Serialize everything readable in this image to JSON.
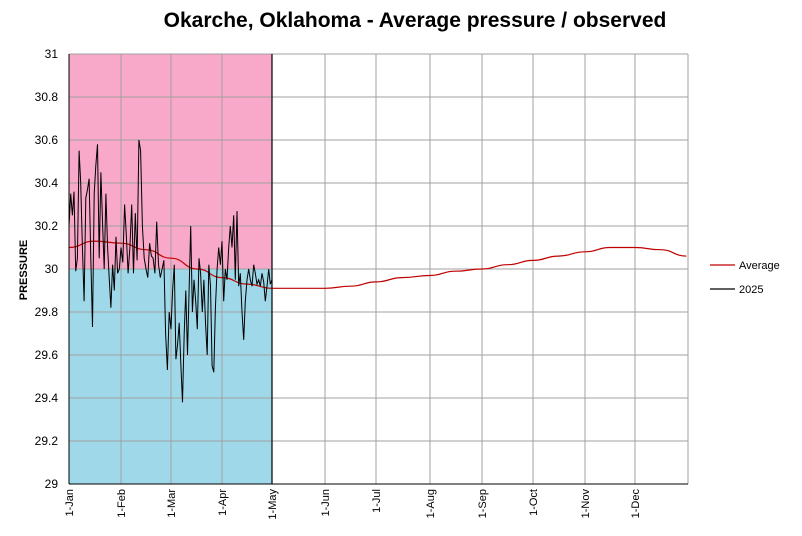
{
  "chart_data": {
    "type": "line",
    "title": "Okarche, Oklahoma - Average pressure / observed",
    "xlabel": "",
    "ylabel": "PRESSURE",
    "ylim": [
      29,
      31
    ],
    "yticks": [
      "31",
      "30.8",
      "30.6",
      "30.4",
      "30.2",
      "30",
      "29.8",
      "29.6",
      "29.4",
      "29.2",
      "29"
    ],
    "xticks": [
      "1-Jan",
      "1-Feb",
      "1-Mar",
      "1-Apr",
      "1-May",
      "1-Jun",
      "1-Jul",
      "1-Aug",
      "1-Sep",
      "1-Oct",
      "1-Nov",
      "1-Dec"
    ],
    "grid": true,
    "legend_position": "right",
    "colors": {
      "average": "#c00000",
      "observed": "#000000",
      "above_fill": "#f8a8c8",
      "below_fill": "#9fd8e8",
      "grid": "#a0a0a0"
    },
    "series": [
      {
        "name": "Average",
        "x_day": [
          0,
          15,
          31,
          45,
          59,
          75,
          90,
          105,
          120,
          135,
          151,
          166,
          181,
          196,
          212,
          227,
          243,
          258,
          273,
          288,
          304,
          319,
          334,
          349,
          364
        ],
        "values": [
          30.1,
          30.13,
          30.12,
          30.09,
          30.05,
          30.0,
          29.96,
          29.93,
          29.91,
          29.91,
          29.91,
          29.92,
          29.94,
          29.96,
          29.97,
          29.99,
          30.0,
          30.02,
          30.04,
          30.06,
          30.08,
          30.1,
          30.1,
          30.09,
          30.06
        ]
      },
      {
        "name": "2025",
        "x_day": [
          0,
          1,
          2,
          3,
          4,
          5,
          6,
          7,
          8,
          9,
          10,
          11,
          12,
          13,
          14,
          15,
          16,
          17,
          18,
          19,
          20,
          21,
          22,
          23,
          24,
          25,
          26,
          27,
          28,
          29,
          30,
          31,
          32,
          33,
          34,
          35,
          36,
          37,
          38,
          39,
          40,
          41,
          42,
          43,
          44,
          45,
          46,
          47,
          48,
          49,
          50,
          51,
          52,
          53,
          54,
          55,
          56,
          57,
          58,
          59,
          60,
          61,
          62,
          63,
          64,
          65,
          66,
          67,
          68,
          69,
          70,
          71,
          72,
          73,
          74,
          75,
          76,
          77,
          78,
          79,
          80,
          81,
          82,
          83,
          84,
          85,
          86,
          87,
          88,
          89,
          90,
          91,
          92,
          93,
          94,
          95,
          96,
          97,
          98,
          99,
          100,
          101,
          102,
          103,
          104,
          105,
          106,
          107,
          108,
          109,
          110,
          111,
          112,
          113,
          114,
          115,
          116,
          117,
          118,
          119,
          120
        ],
        "values": [
          30.2,
          30.35,
          30.25,
          30.36,
          29.99,
          30.05,
          30.55,
          30.4,
          30.1,
          29.85,
          30.33,
          30.37,
          30.42,
          30.05,
          29.73,
          30.35,
          30.48,
          30.58,
          30.05,
          30.45,
          30.22,
          30.0,
          30.35,
          30.1,
          29.95,
          29.82,
          30.02,
          29.9,
          30.15,
          29.98,
          30.0,
          30.1,
          30.03,
          30.3,
          30.15,
          29.98,
          30.1,
          30.3,
          29.98,
          30.26,
          30.04,
          30.6,
          30.55,
          30.2,
          30.05,
          30.0,
          29.96,
          30.12,
          30.06,
          30.05,
          29.98,
          30.22,
          30.02,
          29.96,
          30.0,
          30.04,
          29.7,
          29.53,
          29.8,
          29.72,
          29.9,
          30.02,
          29.58,
          29.65,
          29.75,
          29.55,
          29.38,
          29.7,
          29.9,
          29.6,
          29.9,
          30.2,
          29.8,
          29.95,
          29.85,
          29.72,
          30.05,
          29.98,
          29.8,
          29.95,
          29.75,
          29.6,
          30.02,
          29.92,
          29.55,
          29.52,
          29.82,
          30.0,
          30.1,
          30.02,
          30.13,
          29.85,
          30.0,
          29.95,
          30.1,
          30.2,
          30.1,
          30.25,
          29.95,
          30.27,
          29.92,
          29.98,
          29.8,
          29.67,
          29.85,
          29.95,
          30.0,
          29.95,
          29.92,
          30.02,
          29.98,
          29.93,
          29.95,
          29.92,
          29.98,
          29.94,
          29.85,
          29.92,
          30.0,
          29.93,
          29.95
        ]
      }
    ]
  }
}
